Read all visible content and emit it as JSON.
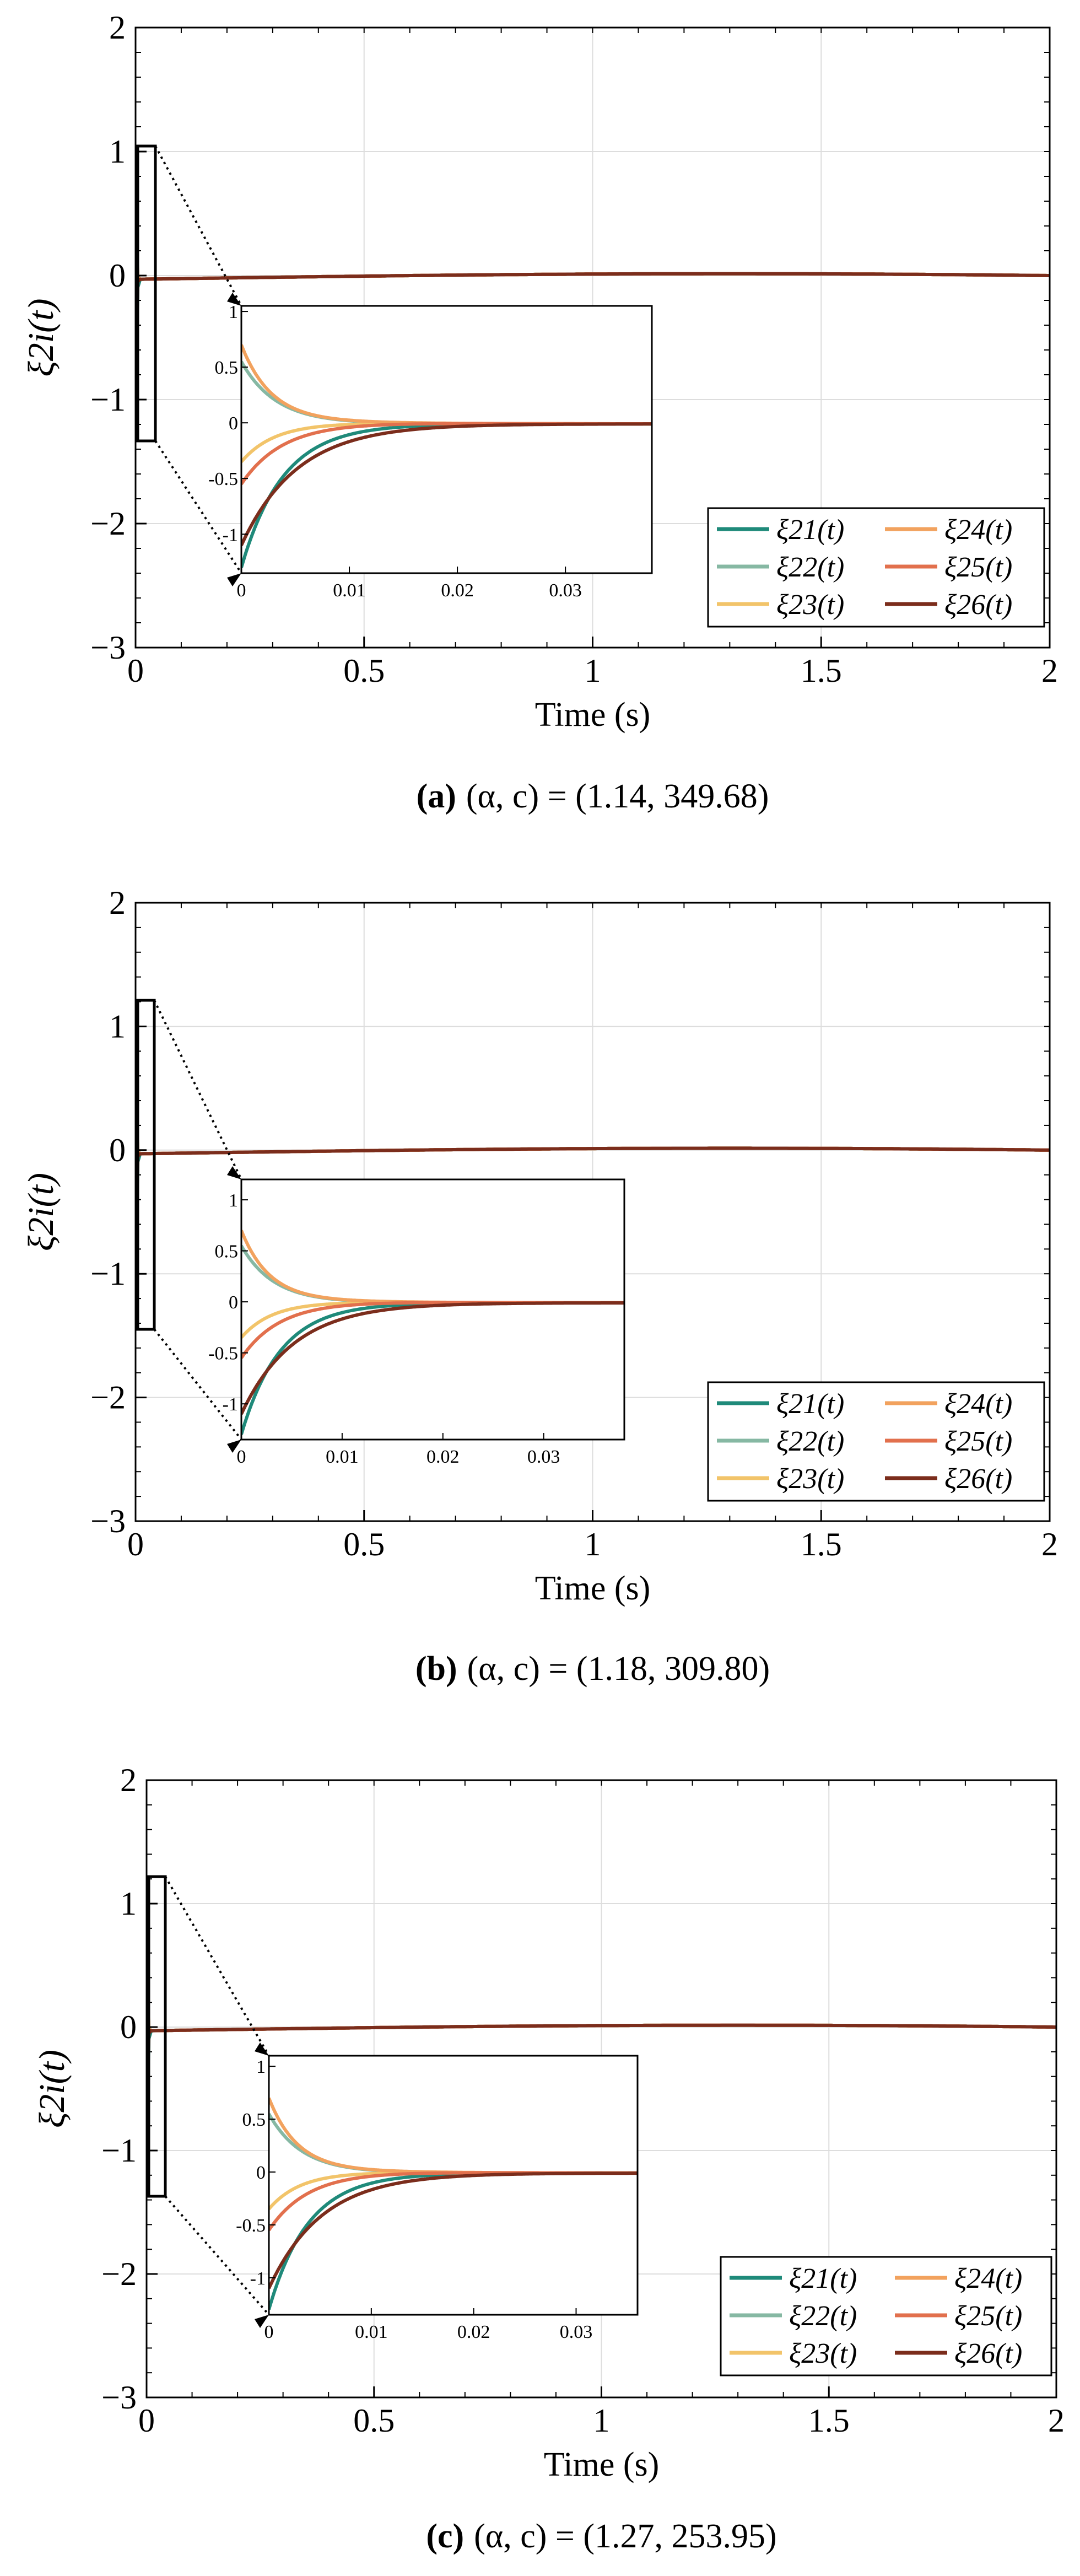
{
  "colors": {
    "xi21": "#1f8a7a",
    "xi22": "#86b8a3",
    "xi23": "#f2c46a",
    "xi24": "#f2a25e",
    "xi25": "#e2704d",
    "xi26": "#7b2d1c",
    "grid": "#dddddd",
    "axis": "#000000"
  },
  "chart_data": [
    {
      "type": "line",
      "panel": "a",
      "caption_label": "(a)",
      "caption_text": "(α, c) = (1.14, 349.68)",
      "xlabel": "Time (s)",
      "ylabel": "ξ2i(t)",
      "xlim": [
        0,
        2
      ],
      "ylim": [
        -3,
        2
      ],
      "xticks": [
        "0",
        "0.5",
        "1",
        "1.5",
        "2"
      ],
      "yticks": [
        "2",
        "1",
        "0",
        "−1",
        "−2",
        "−3"
      ],
      "grid": true,
      "legend": [
        "ξ21(t)",
        "ξ22(t)",
        "ξ23(t)",
        "ξ24(t)",
        "ξ25(t)",
        "ξ26(t)"
      ],
      "legend_position": "bottom-right",
      "series": [
        {
          "name": "ξ21(t)",
          "initial": -1.3,
          "steady": -0.01
        },
        {
          "name": "ξ22(t)",
          "initial": 0.55,
          "steady": -0.01
        },
        {
          "name": "ξ23(t)",
          "initial": -0.35,
          "steady": -0.01
        },
        {
          "name": "ξ24(t)",
          "initial": 0.7,
          "steady": -0.01
        },
        {
          "name": "ξ25(t)",
          "initial": -0.55,
          "steady": -0.01
        },
        {
          "name": "ξ26(t)",
          "initial": -1.1,
          "steady": -0.01
        }
      ],
      "inset": {
        "xlim": [
          0,
          0.038
        ],
        "ylim": [
          -1.35,
          1.05
        ],
        "xticks": [
          "0",
          "0.01",
          "0.02",
          "0.03"
        ],
        "yticks": [
          "1",
          "0.5",
          "0",
          "-0.5",
          "-1"
        ]
      }
    },
    {
      "type": "line",
      "panel": "b",
      "caption_label": "(b)",
      "caption_text": "(α, c) = (1.18, 309.80)",
      "xlabel": "Time (s)",
      "ylabel": "ξ2i(t)",
      "xlim": [
        0,
        2
      ],
      "ylim": [
        -3,
        2
      ],
      "xticks": [
        "0",
        "0.5",
        "1",
        "1.5",
        "2"
      ],
      "yticks": [
        "2",
        "1",
        "0",
        "−1",
        "−2",
        "−3"
      ],
      "grid": true,
      "legend": [
        "ξ21(t)",
        "ξ22(t)",
        "ξ23(t)",
        "ξ24(t)",
        "ξ25(t)",
        "ξ26(t)"
      ],
      "legend_position": "bottom-right",
      "series": [
        {
          "name": "ξ21(t)",
          "initial": -1.3,
          "steady": -0.01
        },
        {
          "name": "ξ22(t)",
          "initial": 0.55,
          "steady": -0.01
        },
        {
          "name": "ξ23(t)",
          "initial": -0.35,
          "steady": -0.01
        },
        {
          "name": "ξ24(t)",
          "initial": 0.7,
          "steady": -0.01
        },
        {
          "name": "ξ25(t)",
          "initial": -0.55,
          "steady": -0.01
        },
        {
          "name": "ξ26(t)",
          "initial": -1.1,
          "steady": -0.01
        }
      ],
      "inset": {
        "xlim": [
          0,
          0.038
        ],
        "ylim": [
          -1.35,
          1.2
        ],
        "xticks": [
          "0",
          "0.01",
          "0.02",
          "0.03"
        ],
        "yticks": [
          "1",
          "0.5",
          "0",
          "-0.5",
          "-1"
        ]
      }
    },
    {
      "type": "line",
      "panel": "c",
      "caption_label": "(c)",
      "caption_text": "(α, c) = (1.27, 253.95)",
      "xlabel": "Time (s)",
      "ylabel": "ξ2i(t)",
      "xlim": [
        0,
        2
      ],
      "ylim": [
        -3,
        2
      ],
      "xticks": [
        "0",
        "0.5",
        "1",
        "1.5",
        "2"
      ],
      "yticks": [
        "2",
        "1",
        "0",
        "−1",
        "−2",
        "−3"
      ],
      "grid": true,
      "legend": [
        "ξ21(t)",
        "ξ22(t)",
        "ξ23(t)",
        "ξ24(t)",
        "ξ25(t)",
        "ξ26(t)"
      ],
      "legend_position": "bottom-right",
      "series": [
        {
          "name": "ξ21(t)",
          "initial": -1.3,
          "steady": -0.01
        },
        {
          "name": "ξ22(t)",
          "initial": 0.55,
          "steady": -0.01
        },
        {
          "name": "ξ23(t)",
          "initial": -0.35,
          "steady": -0.01
        },
        {
          "name": "ξ24(t)",
          "initial": 0.7,
          "steady": -0.01
        },
        {
          "name": "ξ25(t)",
          "initial": -0.55,
          "steady": -0.01
        },
        {
          "name": "ξ26(t)",
          "initial": -1.1,
          "steady": -0.01
        }
      ],
      "inset": {
        "xlim": [
          0,
          0.036
        ],
        "ylim": [
          -1.35,
          1.1
        ],
        "xticks": [
          "0",
          "0.01",
          "0.02",
          "0.03"
        ],
        "yticks": [
          "1",
          "0.5",
          "0",
          "-0.5",
          "-1"
        ]
      }
    }
  ]
}
